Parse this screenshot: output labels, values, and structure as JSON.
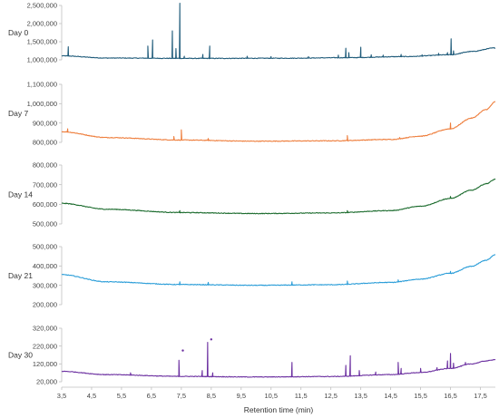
{
  "chart_data": {
    "type": "line",
    "xlabel": "Retention time (min)",
    "xlim": [
      3.5,
      18.0
    ],
    "x_ticks": [
      "3,5",
      "4,5",
      "5,5",
      "6,5",
      "7,5",
      "8,5",
      "9,5",
      "10,5",
      "11,5",
      "12,5",
      "13,5",
      "14,5",
      "15,5",
      "16,5",
      "17,5"
    ],
    "grid": false,
    "legend": "none",
    "panels": [
      {
        "label": "Day 0",
        "color": "#1f5b7a",
        "ylim": [
          1000000,
          2500000
        ],
        "y_ticks": [
          "1,000,000",
          "1,500,000",
          "2,000,000",
          "2,500,000"
        ],
        "baseline": [
          [
            3.5,
            1110000
          ],
          [
            5.0,
            1050000
          ],
          [
            8.0,
            1040000
          ],
          [
            11.0,
            1045000
          ],
          [
            13.0,
            1060000
          ],
          [
            15.0,
            1090000
          ],
          [
            16.5,
            1140000
          ],
          [
            17.2,
            1230000
          ],
          [
            18.0,
            1330000
          ]
        ],
        "peaks": [
          [
            3.72,
            1360000
          ],
          [
            6.38,
            1380000
          ],
          [
            6.54,
            1550000
          ],
          [
            7.2,
            1800000
          ],
          [
            7.32,
            1310000
          ],
          [
            7.45,
            2560000
          ],
          [
            7.6,
            1100000
          ],
          [
            8.22,
            1150000
          ],
          [
            8.45,
            1380000
          ],
          [
            9.7,
            1100000
          ],
          [
            10.5,
            1090000
          ],
          [
            11.75,
            1090000
          ],
          [
            12.75,
            1130000
          ],
          [
            13.0,
            1320000
          ],
          [
            13.1,
            1200000
          ],
          [
            13.5,
            1350000
          ],
          [
            13.85,
            1140000
          ],
          [
            14.25,
            1130000
          ],
          [
            14.85,
            1150000
          ],
          [
            15.55,
            1140000
          ],
          [
            16.1,
            1180000
          ],
          [
            16.4,
            1200000
          ],
          [
            16.52,
            1580000
          ],
          [
            16.6,
            1250000
          ]
        ]
      },
      {
        "label": "Day 7",
        "color": "#ee7d3b",
        "ylim": [
          800000,
          1100000
        ],
        "y_ticks": [
          "800,000",
          "900,000",
          "1,000,000",
          "1,100,000"
        ],
        "baseline": [
          [
            3.5,
            855000
          ],
          [
            5.0,
            825000
          ],
          [
            7.5,
            812000
          ],
          [
            10.0,
            806000
          ],
          [
            12.5,
            808000
          ],
          [
            14.5,
            815000
          ],
          [
            15.5,
            832000
          ],
          [
            16.5,
            870000
          ],
          [
            17.2,
            925000
          ],
          [
            17.7,
            970000
          ],
          [
            18.0,
            1010000
          ]
        ],
        "peaks": [
          [
            3.7,
            870000
          ],
          [
            7.25,
            830000
          ],
          [
            7.5,
            865000
          ],
          [
            8.4,
            820000
          ],
          [
            13.05,
            835000
          ],
          [
            14.8,
            825000
          ],
          [
            16.5,
            900000
          ]
        ]
      },
      {
        "label": "Day 14",
        "color": "#1b6b2d",
        "ylim": [
          500000,
          800000
        ],
        "y_ticks": [
          "500,000",
          "600,000",
          "700,000",
          "800,000"
        ],
        "baseline": [
          [
            3.5,
            605000
          ],
          [
            5.0,
            575000
          ],
          [
            7.5,
            558000
          ],
          [
            10.0,
            553000
          ],
          [
            12.5,
            556000
          ],
          [
            14.5,
            568000
          ],
          [
            15.5,
            590000
          ],
          [
            16.5,
            630000
          ],
          [
            17.2,
            672000
          ],
          [
            17.7,
            705000
          ],
          [
            18.0,
            728000
          ]
        ],
        "peaks": [
          [
            7.45,
            568000
          ],
          [
            13.05,
            568000
          ],
          [
            16.5,
            640000
          ]
        ]
      },
      {
        "label": "Day 21",
        "color": "#2a9dd8",
        "ylim": [
          200000,
          500000
        ],
        "y_ticks": [
          "200,000",
          "300,000",
          "400,000",
          "500,000"
        ],
        "baseline": [
          [
            3.5,
            355000
          ],
          [
            5.0,
            318000
          ],
          [
            7.5,
            304000
          ],
          [
            10.0,
            300000
          ],
          [
            12.5,
            303000
          ],
          [
            14.5,
            315000
          ],
          [
            15.5,
            332000
          ],
          [
            16.5,
            362000
          ],
          [
            17.2,
            398000
          ],
          [
            17.7,
            430000
          ],
          [
            18.0,
            458000
          ]
        ],
        "peaks": [
          [
            7.45,
            318000
          ],
          [
            8.4,
            315000
          ],
          [
            11.2,
            318000
          ],
          [
            13.05,
            322000
          ],
          [
            14.75,
            328000
          ],
          [
            16.5,
            372000
          ]
        ]
      },
      {
        "label": "Day 30",
        "color": "#6b2fa0",
        "ylim": [
          20000,
          380000
        ],
        "y_ticks": [
          "20,000",
          "120,000",
          "220,000",
          "320,000"
        ],
        "baseline": [
          [
            3.5,
            90000
          ],
          [
            5.0,
            68000
          ],
          [
            7.5,
            56000
          ],
          [
            10.0,
            52000
          ],
          [
            12.5,
            55000
          ],
          [
            14.5,
            68000
          ],
          [
            15.5,
            82000
          ],
          [
            16.5,
            110000
          ],
          [
            17.2,
            140000
          ],
          [
            17.7,
            160000
          ],
          [
            18.0,
            170000
          ]
        ],
        "peaks": [
          [
            5.8,
            80000
          ],
          [
            7.42,
            165000
          ],
          [
            8.2,
            95000
          ],
          [
            8.38,
            285000
          ],
          [
            8.55,
            80000
          ],
          [
            11.2,
            150000
          ],
          [
            13.0,
            130000
          ],
          [
            13.15,
            195000
          ],
          [
            13.45,
            95000
          ],
          [
            14.0,
            85000
          ],
          [
            14.75,
            150000
          ],
          [
            14.85,
            110000
          ],
          [
            15.5,
            110000
          ],
          [
            16.05,
            115000
          ],
          [
            16.4,
            160000
          ],
          [
            16.5,
            210000
          ],
          [
            16.6,
            145000
          ],
          [
            17.0,
            150000
          ]
        ],
        "markers": [
          [
            7.55,
            230000
          ],
          [
            8.5,
            305000
          ]
        ]
      }
    ]
  }
}
